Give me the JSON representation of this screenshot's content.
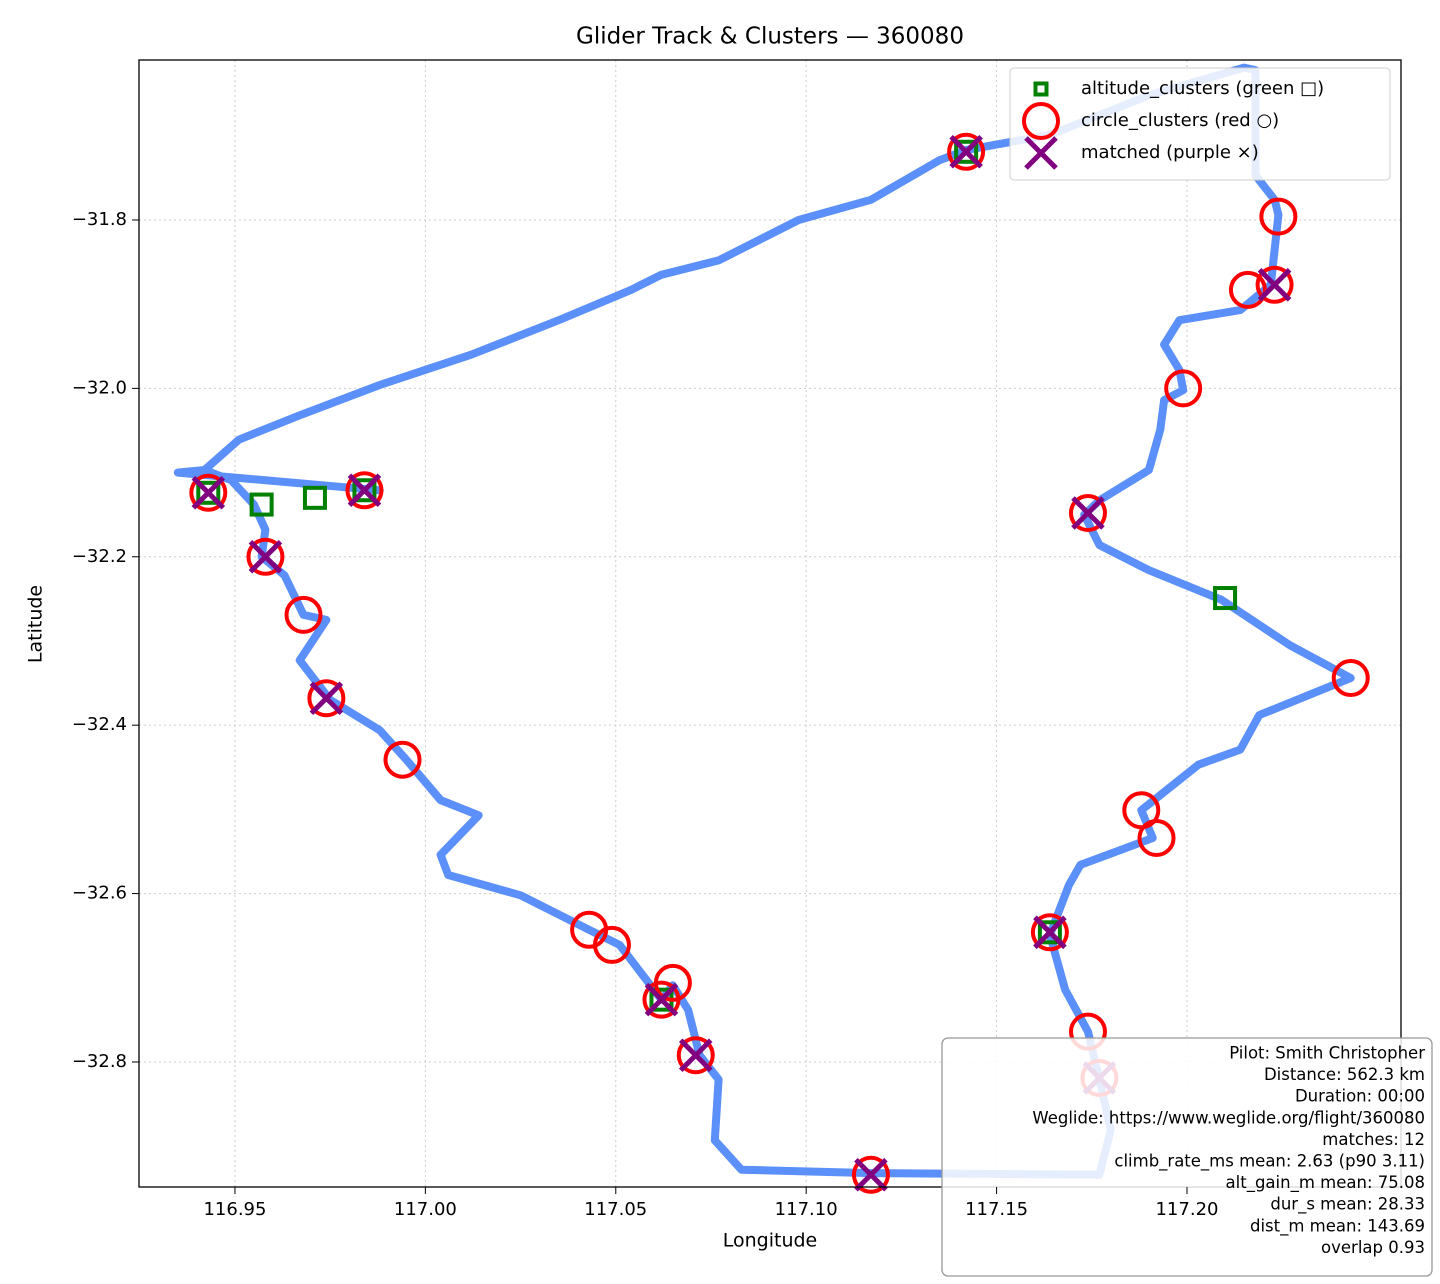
{
  "chart_data": {
    "type": "scatter",
    "title": "Glider Track & Clusters — 360080",
    "x_label": "Longitude",
    "y_label": "Latitude",
    "xlim": [
      116.9248,
      117.2562
    ],
    "ylim": [
      -32.9485,
      -31.61
    ],
    "xticks": [
      116.95,
      {
        "value": 117.0,
        "label": "117.00"
      },
      117.05,
      {
        "value": 117.1,
        "label": "117.10"
      },
      117.15,
      {
        "value": 117.2,
        "label": "117.20"
      }
    ],
    "yticks": [
      {
        "value": -31.8,
        "label": "−31.8"
      },
      {
        "value": -32.0,
        "label": "−32.0"
      },
      {
        "value": -32.2,
        "label": "−32.2"
      },
      {
        "value": -32.4,
        "label": "−32.4"
      },
      {
        "value": -32.6,
        "label": "−32.6"
      },
      {
        "value": -32.8,
        "label": "−32.8"
      }
    ],
    "grid": true,
    "legend": "upper right",
    "track": {
      "color": "#5b8ff9",
      "x": [
        116.988,
        116.935,
        116.942,
        116.951,
        116.967,
        116.988,
        117.012,
        117.035,
        117.054,
        117.062,
        117.077,
        117.098,
        117.117,
        117.135,
        117.142,
        117.164,
        117.19,
        117.215,
        117.218,
        117.218,
        117.223,
        117.224,
        117.222,
        117.214,
        117.198,
        117.194,
        117.198,
        117.199,
        117.194,
        117.193,
        117.19,
        117.177,
        117.173,
        117.177,
        117.19,
        117.209,
        117.227,
        117.243,
        117.219,
        117.214,
        117.203,
        117.188,
        117.191,
        117.172,
        117.169,
        117.164,
        117.168,
        117.174,
        117.177,
        117.18,
        117.177,
        117.117,
        117.083,
        117.076,
        117.077,
        117.072,
        117.069,
        117.065,
        117.062,
        117.051,
        117.043,
        117.025,
        117.006,
        117.004,
        117.014,
        117.004,
        116.995,
        116.988,
        116.975,
        116.967,
        116.974,
        116.968,
        116.963,
        116.957,
        116.958,
        116.955,
        116.949,
        116.942
      ],
      "y": [
        -32.121,
        -32.1,
        -32.097,
        -32.061,
        -32.032,
        -31.996,
        -31.96,
        -31.919,
        -31.883,
        -31.865,
        -31.848,
        -31.8,
        -31.776,
        -31.729,
        -31.717,
        -31.699,
        -31.652,
        -31.619,
        -31.622,
        -31.747,
        -31.776,
        -31.794,
        -31.877,
        -31.907,
        -31.919,
        -31.948,
        -31.978,
        -32.002,
        -32.014,
        -32.049,
        -32.097,
        -32.133,
        -32.15,
        -32.186,
        -32.216,
        -32.251,
        -32.305,
        -32.344,
        -32.388,
        -32.429,
        -32.447,
        -32.501,
        -32.534,
        -32.566,
        -32.59,
        -32.649,
        -32.714,
        -32.764,
        -32.821,
        -32.881,
        -32.934,
        -32.932,
        -32.928,
        -32.893,
        -32.821,
        -32.792,
        -32.738,
        -32.709,
        -32.726,
        -32.661,
        -32.643,
        -32.602,
        -32.578,
        -32.554,
        -32.507,
        -32.489,
        -32.441,
        -32.406,
        -32.37,
        -32.323,
        -32.275,
        -32.269,
        -32.222,
        -32.2,
        -32.168,
        -32.138,
        -32.109,
        -32.097
      ]
    },
    "series": [
      {
        "name": "altitude_clusters (green □)",
        "color": "#008000",
        "marker": "square",
        "x": [
          116.943,
          116.957,
          116.971,
          116.984,
          117.062,
          117.142,
          117.21,
          117.164
        ],
        "values": [
          -32.124,
          -32.138,
          -32.13,
          -32.121,
          -32.726,
          -31.719,
          -32.249,
          -32.646
        ]
      },
      {
        "name": "circle_clusters (red ○)",
        "color": "#ff0000",
        "marker": "circle",
        "x": [
          116.943,
          116.984,
          116.958,
          116.968,
          116.974,
          116.994,
          117.043,
          117.049,
          117.065,
          117.062,
          117.071,
          117.117,
          117.142,
          117.224,
          117.216,
          117.223,
          117.199,
          117.174,
          117.243,
          117.188,
          117.192,
          117.164,
          117.174,
          117.177
        ],
        "values": [
          -32.124,
          -32.121,
          -32.2,
          -32.269,
          -32.368,
          -32.441,
          -32.643,
          -32.661,
          -32.706,
          -32.726,
          -32.792,
          -32.934,
          -31.719,
          -31.796,
          -31.883,
          -31.877,
          -32.0,
          -32.148,
          -32.344,
          -32.501,
          -32.534,
          -32.646,
          -32.764,
          -32.819
        ]
      },
      {
        "name": "matched (purple ×)",
        "color": "#800080",
        "marker": "x",
        "x": [
          116.943,
          116.984,
          116.958,
          116.974,
          117.062,
          117.071,
          117.117,
          117.142,
          117.223,
          117.174,
          117.164,
          117.177
        ],
        "values": [
          -32.124,
          -32.121,
          -32.2,
          -32.368,
          -32.726,
          -32.792,
          -32.934,
          -31.719,
          -31.877,
          -32.148,
          -32.646,
          -32.819
        ]
      }
    ],
    "info_lines": [
      "Pilot: Smith Christopher",
      "Distance: 562.3 km",
      "Duration: 00:00",
      "Weglide: https://www.weglide.org/flight/360080",
      "matches: 12",
      "climb_rate_ms mean: 2.63 (p90 3.11)",
      "alt_gain_m mean: 75.08",
      "dur_s mean: 28.33",
      "dist_m mean: 143.69",
      "overlap 0.93"
    ]
  }
}
